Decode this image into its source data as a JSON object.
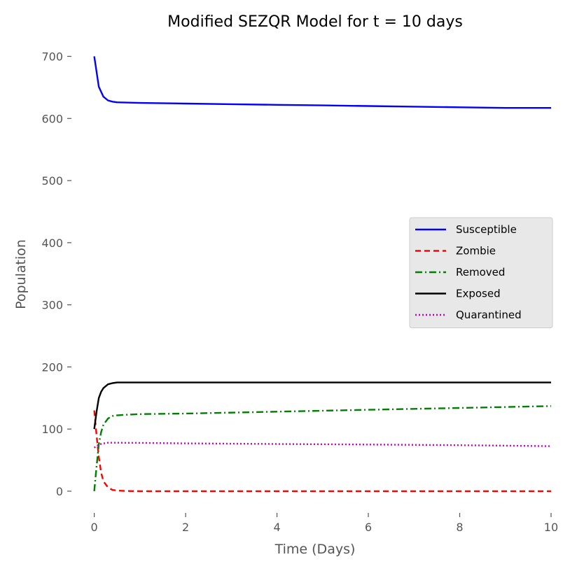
{
  "chart_data": {
    "type": "line",
    "title": "Modified SEZQR Model for t = 10 days",
    "xlabel": "Time (Days)",
    "ylabel": "Population",
    "xlim": [
      -0.5,
      10.2
    ],
    "ylim": [
      -35,
      740
    ],
    "xticks": [
      0,
      2,
      4,
      6,
      8,
      10
    ],
    "yticks": [
      0,
      100,
      200,
      300,
      400,
      500,
      600,
      700
    ],
    "grid": false,
    "legend_position": "center-right",
    "series": [
      {
        "name": "Susceptible",
        "color": "#0000ff",
        "style": "solid",
        "x": [
          0,
          0.1,
          0.2,
          0.3,
          0.4,
          0.5,
          0.7,
          1,
          2,
          3,
          4,
          5,
          6,
          7,
          8,
          9,
          10
        ],
        "y": [
          700,
          651,
          635,
          629,
          627,
          626,
          625.5,
          625,
          624,
          623,
          622,
          621,
          620,
          619,
          618,
          617,
          617
        ]
      },
      {
        "name": "Zombie",
        "color": "#ff0000",
        "style": "dashed",
        "x": [
          0,
          0.05,
          0.1,
          0.15,
          0.2,
          0.3,
          0.4,
          0.5,
          0.7,
          1,
          2,
          4,
          6,
          8,
          10
        ],
        "y": [
          130,
          90,
          55,
          30,
          16,
          6,
          2,
          1,
          0.3,
          0,
          0,
          0,
          0,
          0,
          0
        ]
      },
      {
        "name": "Removed",
        "color": "#008000",
        "style": "dashdot",
        "x": [
          0,
          0.05,
          0.1,
          0.15,
          0.2,
          0.3,
          0.4,
          0.5,
          0.7,
          1,
          2,
          4,
          6,
          8,
          10
        ],
        "y": [
          0,
          40,
          75,
          95,
          107,
          117,
          121,
          122,
          123,
          124,
          125,
          128,
          131,
          134,
          137
        ]
      },
      {
        "name": "Exposed",
        "color": "#000000",
        "style": "solid",
        "x": [
          0,
          0.05,
          0.1,
          0.15,
          0.2,
          0.3,
          0.4,
          0.5,
          0.7,
          1,
          2,
          4,
          6,
          8,
          10
        ],
        "y": [
          100,
          128,
          150,
          160,
          166,
          172,
          174,
          175,
          175,
          175,
          175,
          175,
          175,
          175,
          175
        ]
      },
      {
        "name": "Quarantined",
        "color": "#bf00bf",
        "style": "dotted",
        "x": [
          0,
          0.1,
          0.2,
          0.3,
          0.5,
          1,
          2,
          4,
          6,
          8,
          10
        ],
        "y": [
          70,
          75,
          77,
          78,
          78,
          77.8,
          77,
          76,
          75,
          74,
          72.5
        ]
      }
    ]
  }
}
